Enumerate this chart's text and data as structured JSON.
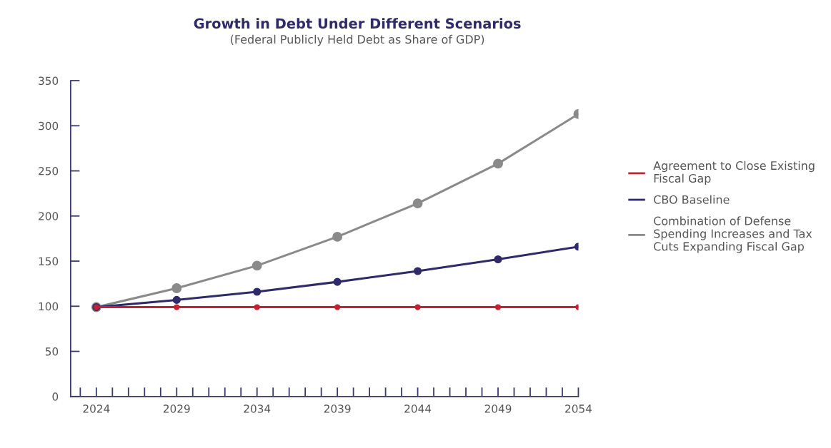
{
  "chart_data": {
    "type": "line",
    "title": "Growth in Debt Under Different Scenarios",
    "subtitle": "(Federal Publicly Held Debt as Share of GDP)",
    "x": [
      2024,
      2029,
      2034,
      2039,
      2044,
      2049,
      2054
    ],
    "series": [
      {
        "name": "Agreement to Close Existing\nFiscal Gap",
        "color": "#c8202f",
        "values": [
          99,
          99,
          99,
          99,
          99,
          99,
          99
        ]
      },
      {
        "name": "CBO Baseline",
        "color": "#2e2a6b",
        "values": [
          99,
          107,
          116,
          127,
          139,
          152,
          166
        ]
      },
      {
        "name": "Combination of Defense\nSpending Increases and Tax\nCuts Expanding Fiscal Gap",
        "color": "#8a8a8a",
        "values": [
          99,
          120,
          145,
          177,
          214,
          258,
          313
        ]
      }
    ],
    "xlim": [
      2022.4,
      2054
    ],
    "xticks": [
      {
        "value": 2023,
        "label": null
      },
      2024,
      {
        "value": 2025,
        "label": null
      },
      {
        "value": 2026,
        "label": null
      },
      {
        "value": 2027,
        "label": null
      },
      {
        "value": 2028,
        "label": null
      },
      2029,
      {
        "value": 2030,
        "label": null
      },
      {
        "value": 2031,
        "label": null
      },
      {
        "value": 2032,
        "label": null
      },
      {
        "value": 2033,
        "label": null
      },
      2034,
      {
        "value": 2035,
        "label": null
      },
      {
        "value": 2036,
        "label": null
      },
      {
        "value": 2037,
        "label": null
      },
      {
        "value": 2038,
        "label": null
      },
      2039,
      {
        "value": 2040,
        "label": null
      },
      {
        "value": 2041,
        "label": null
      },
      {
        "value": 2042,
        "label": null
      },
      {
        "value": 2043,
        "label": null
      },
      2044,
      {
        "value": 2045,
        "label": null
      },
      {
        "value": 2046,
        "label": null
      },
      {
        "value": 2047,
        "label": null
      },
      {
        "value": 2048,
        "label": null
      },
      2049,
      {
        "value": 2050,
        "label": null
      },
      {
        "value": 2051,
        "label": null
      },
      {
        "value": 2052,
        "label": null
      },
      {
        "value": 2053,
        "label": null
      },
      2054
    ],
    "ylim": [
      0,
      350
    ],
    "yticks": [
      0,
      50,
      100,
      150,
      200,
      250,
      300,
      350
    ],
    "grid": false,
    "legend": "right",
    "marker": "circle",
    "line_style": "solid"
  }
}
